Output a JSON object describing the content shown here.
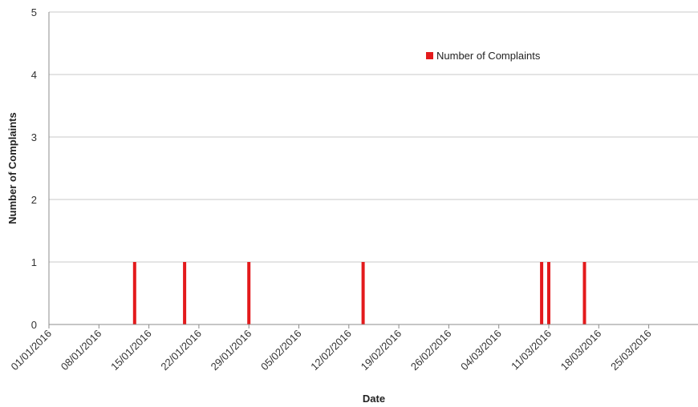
{
  "chart_data": {
    "type": "bar",
    "xlabel": "Date",
    "ylabel": "Number of Complaints",
    "ylim": [
      0,
      5
    ],
    "yticks": [
      "0",
      "1",
      "2",
      "3",
      "4",
      "5"
    ],
    "xlim": [
      "2016-01-01",
      "2016-03-31"
    ],
    "xticks": [
      "01/01/2016",
      "08/01/2016",
      "15/01/2016",
      "22/01/2016",
      "29/01/2016",
      "05/02/2016",
      "12/02/2016",
      "19/02/2016",
      "26/02/2016",
      "04/03/2016",
      "11/03/2016",
      "18/03/2016",
      "25/03/2016"
    ],
    "grid": true,
    "legend_position": "top-right",
    "series": [
      {
        "name": "Number of Complaints",
        "color": "#e31a1c",
        "x": [
          "2016-01-13",
          "2016-01-20",
          "2016-01-29",
          "2016-02-14",
          "2016-03-10",
          "2016-03-11",
          "2016-03-16"
        ],
        "values": [
          1,
          1,
          1,
          1,
          1,
          1,
          1
        ]
      }
    ]
  }
}
